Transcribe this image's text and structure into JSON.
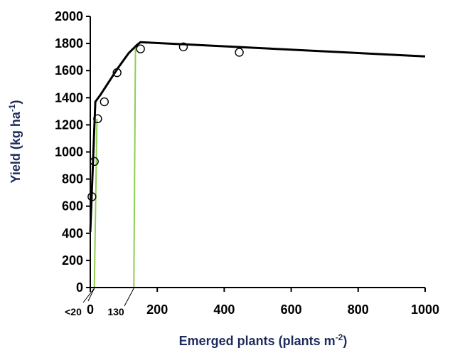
{
  "chart_data": {
    "type": "scatter",
    "xlabel": {
      "main": "Emerged plants (plants m",
      "sup": "-2",
      "tail": ")"
    },
    "ylabel": {
      "main": "Yield (kg ha",
      "sup": "-1",
      "tail": ")"
    },
    "xlim": [
      0,
      1000
    ],
    "ylim": [
      0,
      2000
    ],
    "xticks": [
      0,
      200,
      400,
      600,
      800,
      1000
    ],
    "yticks": [
      0,
      200,
      400,
      600,
      800,
      1000,
      1200,
      1400,
      1600,
      1800,
      2000
    ],
    "grid": false,
    "points": [
      {
        "x": 5,
        "y": 670
      },
      {
        "x": 12,
        "y": 930
      },
      {
        "x": 22,
        "y": 1245
      },
      {
        "x": 42,
        "y": 1370
      },
      {
        "x": 80,
        "y": 1585
      },
      {
        "x": 150,
        "y": 1760
      },
      {
        "x": 278,
        "y": 1775
      },
      {
        "x": 445,
        "y": 1735
      }
    ],
    "fit_line": [
      {
        "x": 0,
        "y": 410
      },
      {
        "x": 15,
        "y": 1370
      },
      {
        "x": 30,
        "y": 1420
      },
      {
        "x": 80,
        "y": 1610
      },
      {
        "x": 115,
        "y": 1730
      },
      {
        "x": 140,
        "y": 1790
      },
      {
        "x": 150,
        "y": 1810
      },
      {
        "x": 1000,
        "y": 1705
      }
    ],
    "threshold_lines": [
      {
        "top": {
          "x": 20,
          "y": 1245
        },
        "bottom": {
          "x": 12,
          "y": 0
        }
      },
      {
        "top": {
          "x": 135,
          "y": 1790
        },
        "bottom": {
          "x": 130,
          "y": 0
        }
      }
    ],
    "annotations": [
      {
        "text": "<20",
        "x": 12
      },
      {
        "text": "130",
        "x": 130
      }
    ],
    "colors": {
      "fit": "#000000",
      "threshold": "#8fce52",
      "axis": "#000000",
      "title": "#1f2d5c"
    }
  }
}
